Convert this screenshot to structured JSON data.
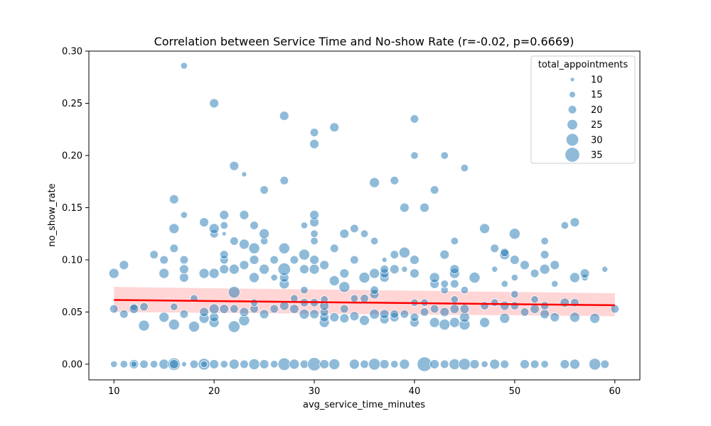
{
  "chart_data": {
    "type": "scatter",
    "title": "Correlation between Service Time and No-show Rate (r=-0.02, p=0.6669)",
    "xlabel": "avg_service_time_minutes",
    "ylabel": "no_show_rate",
    "xlim": [
      7.5,
      62.5
    ],
    "ylim": [
      -0.015,
      0.3
    ],
    "x_ticks": [
      10,
      20,
      30,
      40,
      50,
      60
    ],
    "y_ticks": [
      0.0,
      0.05,
      0.1,
      0.15,
      0.2,
      0.25,
      0.3
    ],
    "x_tick_labels": [
      "10",
      "20",
      "30",
      "40",
      "50",
      "60"
    ],
    "y_tick_labels": [
      "0.00",
      "0.05",
      "0.10",
      "0.15",
      "0.20",
      "0.25",
      "0.30"
    ],
    "grid": false,
    "point_color": "#1f77b4",
    "point_alpha": 0.5,
    "regression_color": "#ff0000",
    "band_color": "#ffb3b3",
    "legend": {
      "title": "total_appointments",
      "placement": "top-right",
      "entries": [
        {
          "label": "10",
          "size": 10
        },
        {
          "label": "15",
          "size": 15
        },
        {
          "label": "20",
          "size": 20
        },
        {
          "label": "25",
          "size": 25
        },
        {
          "label": "30",
          "size": 30
        },
        {
          "label": "35",
          "size": 35
        }
      ]
    },
    "regression": {
      "x": [
        10,
        60
      ],
      "y": [
        0.0615,
        0.0565
      ],
      "band_upper": [
        0.074,
        0.068
      ],
      "band_lower": [
        0.05,
        0.046
      ]
    },
    "points": [
      {
        "x": 10,
        "y": 0.0,
        "s": 16
      },
      {
        "x": 11,
        "y": 0.0,
        "s": 18
      },
      {
        "x": 12,
        "y": 0.0,
        "s": 22
      },
      {
        "x": 12,
        "y": 0.0,
        "s": 14
      },
      {
        "x": 13,
        "y": 0.0,
        "s": 20
      },
      {
        "x": 14,
        "y": 0.0,
        "s": 18
      },
      {
        "x": 15,
        "y": 0.0,
        "s": 24
      },
      {
        "x": 16,
        "y": 0.0,
        "s": 30
      },
      {
        "x": 16,
        "y": 0.0,
        "s": 22
      },
      {
        "x": 17,
        "y": 0.0,
        "s": 12
      },
      {
        "x": 18,
        "y": 0.0,
        "s": 20
      },
      {
        "x": 19,
        "y": 0.0,
        "s": 28
      },
      {
        "x": 19,
        "y": 0.0,
        "s": 16
      },
      {
        "x": 20,
        "y": 0.0,
        "s": 22
      },
      {
        "x": 21,
        "y": 0.0,
        "s": 18
      },
      {
        "x": 22,
        "y": 0.0,
        "s": 24
      },
      {
        "x": 23,
        "y": 0.0,
        "s": 20
      },
      {
        "x": 24,
        "y": 0.0,
        "s": 26
      },
      {
        "x": 25,
        "y": 0.0,
        "s": 22
      },
      {
        "x": 26,
        "y": 0.0,
        "s": 18
      },
      {
        "x": 27,
        "y": 0.0,
        "s": 30
      },
      {
        "x": 28,
        "y": 0.0,
        "s": 24
      },
      {
        "x": 29,
        "y": 0.0,
        "s": 20
      },
      {
        "x": 30,
        "y": 0.0,
        "s": 32
      },
      {
        "x": 31,
        "y": 0.0,
        "s": 22
      },
      {
        "x": 32,
        "y": 0.0,
        "s": 26
      },
      {
        "x": 34,
        "y": 0.0,
        "s": 24
      },
      {
        "x": 35,
        "y": 0.0,
        "s": 20
      },
      {
        "x": 36,
        "y": 0.0,
        "s": 28
      },
      {
        "x": 37,
        "y": 0.0,
        "s": 22
      },
      {
        "x": 38,
        "y": 0.0,
        "s": 18
      },
      {
        "x": 39,
        "y": 0.0,
        "s": 24
      },
      {
        "x": 41,
        "y": 0.0,
        "s": 35
      },
      {
        "x": 42,
        "y": 0.0,
        "s": 22
      },
      {
        "x": 43,
        "y": 0.0,
        "s": 20
      },
      {
        "x": 44,
        "y": 0.0,
        "s": 26
      },
      {
        "x": 45,
        "y": 0.0,
        "s": 28
      },
      {
        "x": 46,
        "y": 0.0,
        "s": 22
      },
      {
        "x": 47,
        "y": 0.0,
        "s": 16
      },
      {
        "x": 48,
        "y": 0.0,
        "s": 24
      },
      {
        "x": 49,
        "y": 0.0,
        "s": 20
      },
      {
        "x": 51,
        "y": 0.0,
        "s": 22
      },
      {
        "x": 52,
        "y": 0.0,
        "s": 20
      },
      {
        "x": 53,
        "y": 0.0,
        "s": 18
      },
      {
        "x": 55,
        "y": 0.0,
        "s": 22
      },
      {
        "x": 56,
        "y": 0.0,
        "s": 24
      },
      {
        "x": 58,
        "y": 0.0,
        "s": 28
      },
      {
        "x": 59,
        "y": 0.0,
        "s": 20
      },
      {
        "x": 10,
        "y": 0.053,
        "s": 20
      },
      {
        "x": 10,
        "y": 0.087,
        "s": 24
      },
      {
        "x": 11,
        "y": 0.048,
        "s": 20
      },
      {
        "x": 11,
        "y": 0.095,
        "s": 22
      },
      {
        "x": 12,
        "y": 0.055,
        "s": 18
      },
      {
        "x": 12,
        "y": 0.053,
        "s": 22
      },
      {
        "x": 13,
        "y": 0.037,
        "s": 26
      },
      {
        "x": 13,
        "y": 0.055,
        "s": 20
      },
      {
        "x": 14,
        "y": 0.105,
        "s": 20
      },
      {
        "x": 15,
        "y": 0.045,
        "s": 24
      },
      {
        "x": 15,
        "y": 0.087,
        "s": 24
      },
      {
        "x": 15,
        "y": 0.1,
        "s": 20
      },
      {
        "x": 16,
        "y": 0.038,
        "s": 26
      },
      {
        "x": 16,
        "y": 0.055,
        "s": 18
      },
      {
        "x": 16,
        "y": 0.111,
        "s": 20
      },
      {
        "x": 16,
        "y": 0.13,
        "s": 24
      },
      {
        "x": 16,
        "y": 0.158,
        "s": 22
      },
      {
        "x": 17,
        "y": 0.048,
        "s": 20
      },
      {
        "x": 17,
        "y": 0.083,
        "s": 22
      },
      {
        "x": 17,
        "y": 0.091,
        "s": 22
      },
      {
        "x": 17,
        "y": 0.1,
        "s": 20
      },
      {
        "x": 17,
        "y": 0.143,
        "s": 16
      },
      {
        "x": 17,
        "y": 0.286,
        "s": 16
      },
      {
        "x": 18,
        "y": 0.036,
        "s": 26
      },
      {
        "x": 18,
        "y": 0.063,
        "s": 18
      },
      {
        "x": 19,
        "y": 0.044,
        "s": 24
      },
      {
        "x": 19,
        "y": 0.05,
        "s": 22
      },
      {
        "x": 19,
        "y": 0.087,
        "s": 24
      },
      {
        "x": 19,
        "y": 0.136,
        "s": 22
      },
      {
        "x": 20,
        "y": 0.04,
        "s": 24
      },
      {
        "x": 20,
        "y": 0.045,
        "s": 22
      },
      {
        "x": 20,
        "y": 0.053,
        "s": 24
      },
      {
        "x": 20,
        "y": 0.087,
        "s": 24
      },
      {
        "x": 20,
        "y": 0.125,
        "s": 20
      },
      {
        "x": 20,
        "y": 0.13,
        "s": 24
      },
      {
        "x": 20,
        "y": 0.25,
        "s": 22
      },
      {
        "x": 21,
        "y": 0.053,
        "s": 22
      },
      {
        "x": 21,
        "y": 0.091,
        "s": 22
      },
      {
        "x": 21,
        "y": 0.1,
        "s": 20
      },
      {
        "x": 21,
        "y": 0.105,
        "s": 20
      },
      {
        "x": 21,
        "y": 0.125,
        "s": 10
      },
      {
        "x": 21,
        "y": 0.133,
        "s": 18
      },
      {
        "x": 21,
        "y": 0.143,
        "s": 22
      },
      {
        "x": 22,
        "y": 0.036,
        "s": 28
      },
      {
        "x": 22,
        "y": 0.053,
        "s": 20
      },
      {
        "x": 22,
        "y": 0.069,
        "s": 28
      },
      {
        "x": 22,
        "y": 0.091,
        "s": 24
      },
      {
        "x": 22,
        "y": 0.118,
        "s": 20
      },
      {
        "x": 22,
        "y": 0.19,
        "s": 22
      },
      {
        "x": 23,
        "y": 0.042,
        "s": 26
      },
      {
        "x": 23,
        "y": 0.05,
        "s": 22
      },
      {
        "x": 23,
        "y": 0.095,
        "s": 22
      },
      {
        "x": 23,
        "y": 0.115,
        "s": 24
      },
      {
        "x": 23,
        "y": 0.143,
        "s": 22
      },
      {
        "x": 23,
        "y": 0.182,
        "s": 12
      },
      {
        "x": 24,
        "y": 0.053,
        "s": 20
      },
      {
        "x": 24,
        "y": 0.059,
        "s": 18
      },
      {
        "x": 24,
        "y": 0.083,
        "s": 24
      },
      {
        "x": 24,
        "y": 0.1,
        "s": 22
      },
      {
        "x": 24,
        "y": 0.111,
        "s": 26
      },
      {
        "x": 24,
        "y": 0.133,
        "s": 20
      },
      {
        "x": 25,
        "y": 0.048,
        "s": 22
      },
      {
        "x": 25,
        "y": 0.091,
        "s": 24
      },
      {
        "x": 25,
        "y": 0.118,
        "s": 18
      },
      {
        "x": 25,
        "y": 0.125,
        "s": 24
      },
      {
        "x": 25,
        "y": 0.167,
        "s": 20
      },
      {
        "x": 26,
        "y": 0.053,
        "s": 20
      },
      {
        "x": 26,
        "y": 0.083,
        "s": 16
      },
      {
        "x": 26,
        "y": 0.1,
        "s": 20
      },
      {
        "x": 27,
        "y": 0.056,
        "s": 22
      },
      {
        "x": 27,
        "y": 0.077,
        "s": 24
      },
      {
        "x": 27,
        "y": 0.083,
        "s": 22
      },
      {
        "x": 27,
        "y": 0.091,
        "s": 30
      },
      {
        "x": 27,
        "y": 0.111,
        "s": 26
      },
      {
        "x": 27,
        "y": 0.176,
        "s": 20
      },
      {
        "x": 27,
        "y": 0.238,
        "s": 22
      },
      {
        "x": 28,
        "y": 0.053,
        "s": 22
      },
      {
        "x": 28,
        "y": 0.063,
        "s": 18
      },
      {
        "x": 28,
        "y": 0.1,
        "s": 20
      },
      {
        "x": 29,
        "y": 0.048,
        "s": 24
      },
      {
        "x": 29,
        "y": 0.059,
        "s": 20
      },
      {
        "x": 29,
        "y": 0.071,
        "s": 18
      },
      {
        "x": 29,
        "y": 0.091,
        "s": 22
      },
      {
        "x": 29,
        "y": 0.105,
        "s": 26
      },
      {
        "x": 29,
        "y": 0.133,
        "s": 16
      },
      {
        "x": 30,
        "y": 0.048,
        "s": 22
      },
      {
        "x": 30,
        "y": 0.059,
        "s": 20
      },
      {
        "x": 30,
        "y": 0.091,
        "s": 24
      },
      {
        "x": 30,
        "y": 0.1,
        "s": 22
      },
      {
        "x": 30,
        "y": 0.118,
        "s": 18
      },
      {
        "x": 30,
        "y": 0.125,
        "s": 18
      },
      {
        "x": 30,
        "y": 0.136,
        "s": 22
      },
      {
        "x": 30,
        "y": 0.143,
        "s": 22
      },
      {
        "x": 30,
        "y": 0.211,
        "s": 22
      },
      {
        "x": 30,
        "y": 0.222,
        "s": 20
      },
      {
        "x": 31,
        "y": 0.04,
        "s": 24
      },
      {
        "x": 31,
        "y": 0.045,
        "s": 22
      },
      {
        "x": 31,
        "y": 0.05,
        "s": 20
      },
      {
        "x": 31,
        "y": 0.056,
        "s": 22
      },
      {
        "x": 31,
        "y": 0.062,
        "s": 18
      },
      {
        "x": 31,
        "y": 0.095,
        "s": 22
      },
      {
        "x": 32,
        "y": 0.045,
        "s": 22
      },
      {
        "x": 32,
        "y": 0.08,
        "s": 24
      },
      {
        "x": 32,
        "y": 0.111,
        "s": 20
      },
      {
        "x": 32,
        "y": 0.227,
        "s": 22
      },
      {
        "x": 33,
        "y": 0.044,
        "s": 22
      },
      {
        "x": 33,
        "y": 0.053,
        "s": 20
      },
      {
        "x": 33,
        "y": 0.074,
        "s": 26
      },
      {
        "x": 33,
        "y": 0.087,
        "s": 22
      },
      {
        "x": 33,
        "y": 0.125,
        "s": 22
      },
      {
        "x": 34,
        "y": 0.046,
        "s": 22
      },
      {
        "x": 34,
        "y": 0.063,
        "s": 18
      },
      {
        "x": 34,
        "y": 0.1,
        "s": 20
      },
      {
        "x": 34,
        "y": 0.13,
        "s": 20
      },
      {
        "x": 35,
        "y": 0.042,
        "s": 24
      },
      {
        "x": 35,
        "y": 0.063,
        "s": 20
      },
      {
        "x": 35,
        "y": 0.083,
        "s": 26
      },
      {
        "x": 35,
        "y": 0.125,
        "s": 18
      },
      {
        "x": 36,
        "y": 0.048,
        "s": 24
      },
      {
        "x": 36,
        "y": 0.067,
        "s": 22
      },
      {
        "x": 36,
        "y": 0.071,
        "s": 20
      },
      {
        "x": 36,
        "y": 0.087,
        "s": 24
      },
      {
        "x": 36,
        "y": 0.118,
        "s": 18
      },
      {
        "x": 36,
        "y": 0.174,
        "s": 24
      },
      {
        "x": 37,
        "y": 0.043,
        "s": 22
      },
      {
        "x": 37,
        "y": 0.048,
        "s": 22
      },
      {
        "x": 37,
        "y": 0.083,
        "s": 22
      },
      {
        "x": 37,
        "y": 0.087,
        "s": 22
      },
      {
        "x": 37,
        "y": 0.091,
        "s": 20
      },
      {
        "x": 37,
        "y": 0.1,
        "s": 12
      },
      {
        "x": 38,
        "y": 0.045,
        "s": 22
      },
      {
        "x": 38,
        "y": 0.048,
        "s": 20
      },
      {
        "x": 38,
        "y": 0.091,
        "s": 22
      },
      {
        "x": 38,
        "y": 0.105,
        "s": 20
      },
      {
        "x": 38,
        "y": 0.176,
        "s": 20
      },
      {
        "x": 39,
        "y": 0.048,
        "s": 20
      },
      {
        "x": 39,
        "y": 0.091,
        "s": 14
      },
      {
        "x": 39,
        "y": 0.107,
        "s": 26
      },
      {
        "x": 39,
        "y": 0.15,
        "s": 22
      },
      {
        "x": 40,
        "y": 0.04,
        "s": 22
      },
      {
        "x": 40,
        "y": 0.045,
        "s": 20
      },
      {
        "x": 40,
        "y": 0.059,
        "s": 18
      },
      {
        "x": 40,
        "y": 0.087,
        "s": 22
      },
      {
        "x": 40,
        "y": 0.1,
        "s": 22
      },
      {
        "x": 40,
        "y": 0.2,
        "s": 18
      },
      {
        "x": 40,
        "y": 0.235,
        "s": 20
      },
      {
        "x": 41,
        "y": 0.05,
        "s": 20
      },
      {
        "x": 41,
        "y": 0.059,
        "s": 18
      },
      {
        "x": 41,
        "y": 0.15,
        "s": 22
      },
      {
        "x": 42,
        "y": 0.04,
        "s": 24
      },
      {
        "x": 42,
        "y": 0.053,
        "s": 20
      },
      {
        "x": 42,
        "y": 0.077,
        "s": 22
      },
      {
        "x": 42,
        "y": 0.083,
        "s": 24
      },
      {
        "x": 42,
        "y": 0.167,
        "s": 20
      },
      {
        "x": 43,
        "y": 0.038,
        "s": 26
      },
      {
        "x": 43,
        "y": 0.05,
        "s": 22
      },
      {
        "x": 43,
        "y": 0.071,
        "s": 18
      },
      {
        "x": 43,
        "y": 0.077,
        "s": 18
      },
      {
        "x": 43,
        "y": 0.105,
        "s": 22
      },
      {
        "x": 43,
        "y": 0.2,
        "s": 18
      },
      {
        "x": 44,
        "y": 0.04,
        "s": 24
      },
      {
        "x": 44,
        "y": 0.053,
        "s": 22
      },
      {
        "x": 44,
        "y": 0.062,
        "s": 18
      },
      {
        "x": 44,
        "y": 0.077,
        "s": 20
      },
      {
        "x": 44,
        "y": 0.087,
        "s": 24
      },
      {
        "x": 44,
        "y": 0.091,
        "s": 22
      },
      {
        "x": 44,
        "y": 0.118,
        "s": 18
      },
      {
        "x": 45,
        "y": 0.038,
        "s": 26
      },
      {
        "x": 45,
        "y": 0.045,
        "s": 24
      },
      {
        "x": 45,
        "y": 0.053,
        "s": 22
      },
      {
        "x": 45,
        "y": 0.071,
        "s": 18
      },
      {
        "x": 45,
        "y": 0.188,
        "s": 18
      },
      {
        "x": 46,
        "y": 0.083,
        "s": 26
      },
      {
        "x": 47,
        "y": 0.04,
        "s": 24
      },
      {
        "x": 47,
        "y": 0.056,
        "s": 20
      },
      {
        "x": 47,
        "y": 0.13,
        "s": 24
      },
      {
        "x": 48,
        "y": 0.059,
        "s": 18
      },
      {
        "x": 48,
        "y": 0.091,
        "s": 14
      },
      {
        "x": 48,
        "y": 0.111,
        "s": 20
      },
      {
        "x": 49,
        "y": 0.044,
        "s": 24
      },
      {
        "x": 49,
        "y": 0.056,
        "s": 22
      },
      {
        "x": 49,
        "y": 0.077,
        "s": 16
      },
      {
        "x": 49,
        "y": 0.105,
        "s": 24
      },
      {
        "x": 49,
        "y": 0.107,
        "s": 20
      },
      {
        "x": 50,
        "y": 0.056,
        "s": 20
      },
      {
        "x": 50,
        "y": 0.067,
        "s": 18
      },
      {
        "x": 50,
        "y": 0.083,
        "s": 16
      },
      {
        "x": 50,
        "y": 0.1,
        "s": 22
      },
      {
        "x": 50,
        "y": 0.125,
        "s": 26
      },
      {
        "x": 51,
        "y": 0.05,
        "s": 20
      },
      {
        "x": 51,
        "y": 0.095,
        "s": 22
      },
      {
        "x": 52,
        "y": 0.053,
        "s": 22
      },
      {
        "x": 52,
        "y": 0.062,
        "s": 18
      },
      {
        "x": 52,
        "y": 0.087,
        "s": 20
      },
      {
        "x": 53,
        "y": 0.048,
        "s": 22
      },
      {
        "x": 53,
        "y": 0.056,
        "s": 20
      },
      {
        "x": 53,
        "y": 0.091,
        "s": 24
      },
      {
        "x": 53,
        "y": 0.105,
        "s": 20
      },
      {
        "x": 53,
        "y": 0.118,
        "s": 18
      },
      {
        "x": 54,
        "y": 0.045,
        "s": 22
      },
      {
        "x": 54,
        "y": 0.077,
        "s": 16
      },
      {
        "x": 54,
        "y": 0.095,
        "s": 22
      },
      {
        "x": 55,
        "y": 0.059,
        "s": 22
      },
      {
        "x": 55,
        "y": 0.133,
        "s": 18
      },
      {
        "x": 56,
        "y": 0.045,
        "s": 24
      },
      {
        "x": 56,
        "y": 0.059,
        "s": 20
      },
      {
        "x": 56,
        "y": 0.083,
        "s": 24
      },
      {
        "x": 56,
        "y": 0.136,
        "s": 22
      },
      {
        "x": 57,
        "y": 0.083,
        "s": 16
      },
      {
        "x": 57,
        "y": 0.087,
        "s": 22
      },
      {
        "x": 58,
        "y": 0.044,
        "s": 24
      },
      {
        "x": 59,
        "y": 0.091,
        "s": 14
      },
      {
        "x": 60,
        "y": 0.053,
        "s": 20
      }
    ]
  }
}
